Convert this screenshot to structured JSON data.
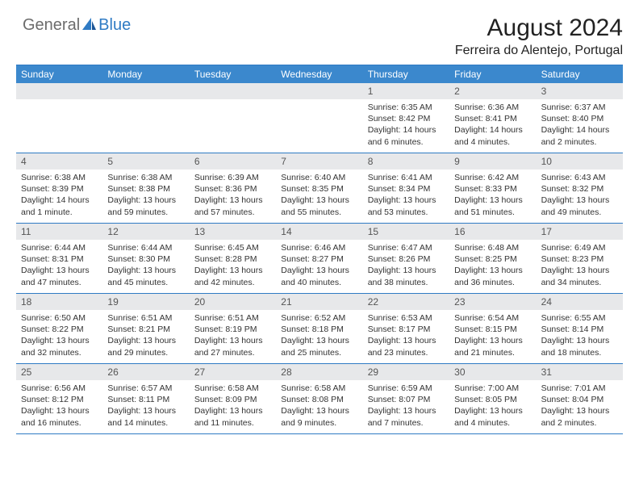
{
  "logo": {
    "text1": "General",
    "text2": "Blue",
    "accent": "#2f7bc4",
    "gray": "#6c6c6c"
  },
  "title": "August 2024",
  "location": "Ferreira do Alentejo, Portugal",
  "colors": {
    "headerBar": "#3b88cd",
    "borderBlue": "#2f7bc4",
    "dayBand": "#e7e8ea",
    "text": "#333333",
    "white": "#ffffff"
  },
  "daysOfWeek": [
    "Sunday",
    "Monday",
    "Tuesday",
    "Wednesday",
    "Thursday",
    "Friday",
    "Saturday"
  ],
  "weeks": [
    [
      {
        "empty": true
      },
      {
        "empty": true
      },
      {
        "empty": true
      },
      {
        "empty": true
      },
      {
        "num": "1",
        "sunrise": "Sunrise: 6:35 AM",
        "sunset": "Sunset: 8:42 PM",
        "daylight": "Daylight: 14 hours and 6 minutes."
      },
      {
        "num": "2",
        "sunrise": "Sunrise: 6:36 AM",
        "sunset": "Sunset: 8:41 PM",
        "daylight": "Daylight: 14 hours and 4 minutes."
      },
      {
        "num": "3",
        "sunrise": "Sunrise: 6:37 AM",
        "sunset": "Sunset: 8:40 PM",
        "daylight": "Daylight: 14 hours and 2 minutes."
      }
    ],
    [
      {
        "num": "4",
        "sunrise": "Sunrise: 6:38 AM",
        "sunset": "Sunset: 8:39 PM",
        "daylight": "Daylight: 14 hours and 1 minute."
      },
      {
        "num": "5",
        "sunrise": "Sunrise: 6:38 AM",
        "sunset": "Sunset: 8:38 PM",
        "daylight": "Daylight: 13 hours and 59 minutes."
      },
      {
        "num": "6",
        "sunrise": "Sunrise: 6:39 AM",
        "sunset": "Sunset: 8:36 PM",
        "daylight": "Daylight: 13 hours and 57 minutes."
      },
      {
        "num": "7",
        "sunrise": "Sunrise: 6:40 AM",
        "sunset": "Sunset: 8:35 PM",
        "daylight": "Daylight: 13 hours and 55 minutes."
      },
      {
        "num": "8",
        "sunrise": "Sunrise: 6:41 AM",
        "sunset": "Sunset: 8:34 PM",
        "daylight": "Daylight: 13 hours and 53 minutes."
      },
      {
        "num": "9",
        "sunrise": "Sunrise: 6:42 AM",
        "sunset": "Sunset: 8:33 PM",
        "daylight": "Daylight: 13 hours and 51 minutes."
      },
      {
        "num": "10",
        "sunrise": "Sunrise: 6:43 AM",
        "sunset": "Sunset: 8:32 PM",
        "daylight": "Daylight: 13 hours and 49 minutes."
      }
    ],
    [
      {
        "num": "11",
        "sunrise": "Sunrise: 6:44 AM",
        "sunset": "Sunset: 8:31 PM",
        "daylight": "Daylight: 13 hours and 47 minutes."
      },
      {
        "num": "12",
        "sunrise": "Sunrise: 6:44 AM",
        "sunset": "Sunset: 8:30 PM",
        "daylight": "Daylight: 13 hours and 45 minutes."
      },
      {
        "num": "13",
        "sunrise": "Sunrise: 6:45 AM",
        "sunset": "Sunset: 8:28 PM",
        "daylight": "Daylight: 13 hours and 42 minutes."
      },
      {
        "num": "14",
        "sunrise": "Sunrise: 6:46 AM",
        "sunset": "Sunset: 8:27 PM",
        "daylight": "Daylight: 13 hours and 40 minutes."
      },
      {
        "num": "15",
        "sunrise": "Sunrise: 6:47 AM",
        "sunset": "Sunset: 8:26 PM",
        "daylight": "Daylight: 13 hours and 38 minutes."
      },
      {
        "num": "16",
        "sunrise": "Sunrise: 6:48 AM",
        "sunset": "Sunset: 8:25 PM",
        "daylight": "Daylight: 13 hours and 36 minutes."
      },
      {
        "num": "17",
        "sunrise": "Sunrise: 6:49 AM",
        "sunset": "Sunset: 8:23 PM",
        "daylight": "Daylight: 13 hours and 34 minutes."
      }
    ],
    [
      {
        "num": "18",
        "sunrise": "Sunrise: 6:50 AM",
        "sunset": "Sunset: 8:22 PM",
        "daylight": "Daylight: 13 hours and 32 minutes."
      },
      {
        "num": "19",
        "sunrise": "Sunrise: 6:51 AM",
        "sunset": "Sunset: 8:21 PM",
        "daylight": "Daylight: 13 hours and 29 minutes."
      },
      {
        "num": "20",
        "sunrise": "Sunrise: 6:51 AM",
        "sunset": "Sunset: 8:19 PM",
        "daylight": "Daylight: 13 hours and 27 minutes."
      },
      {
        "num": "21",
        "sunrise": "Sunrise: 6:52 AM",
        "sunset": "Sunset: 8:18 PM",
        "daylight": "Daylight: 13 hours and 25 minutes."
      },
      {
        "num": "22",
        "sunrise": "Sunrise: 6:53 AM",
        "sunset": "Sunset: 8:17 PM",
        "daylight": "Daylight: 13 hours and 23 minutes."
      },
      {
        "num": "23",
        "sunrise": "Sunrise: 6:54 AM",
        "sunset": "Sunset: 8:15 PM",
        "daylight": "Daylight: 13 hours and 21 minutes."
      },
      {
        "num": "24",
        "sunrise": "Sunrise: 6:55 AM",
        "sunset": "Sunset: 8:14 PM",
        "daylight": "Daylight: 13 hours and 18 minutes."
      }
    ],
    [
      {
        "num": "25",
        "sunrise": "Sunrise: 6:56 AM",
        "sunset": "Sunset: 8:12 PM",
        "daylight": "Daylight: 13 hours and 16 minutes."
      },
      {
        "num": "26",
        "sunrise": "Sunrise: 6:57 AM",
        "sunset": "Sunset: 8:11 PM",
        "daylight": "Daylight: 13 hours and 14 minutes."
      },
      {
        "num": "27",
        "sunrise": "Sunrise: 6:58 AM",
        "sunset": "Sunset: 8:09 PM",
        "daylight": "Daylight: 13 hours and 11 minutes."
      },
      {
        "num": "28",
        "sunrise": "Sunrise: 6:58 AM",
        "sunset": "Sunset: 8:08 PM",
        "daylight": "Daylight: 13 hours and 9 minutes."
      },
      {
        "num": "29",
        "sunrise": "Sunrise: 6:59 AM",
        "sunset": "Sunset: 8:07 PM",
        "daylight": "Daylight: 13 hours and 7 minutes."
      },
      {
        "num": "30",
        "sunrise": "Sunrise: 7:00 AM",
        "sunset": "Sunset: 8:05 PM",
        "daylight": "Daylight: 13 hours and 4 minutes."
      },
      {
        "num": "31",
        "sunrise": "Sunrise: 7:01 AM",
        "sunset": "Sunset: 8:04 PM",
        "daylight": "Daylight: 13 hours and 2 minutes."
      }
    ]
  ]
}
